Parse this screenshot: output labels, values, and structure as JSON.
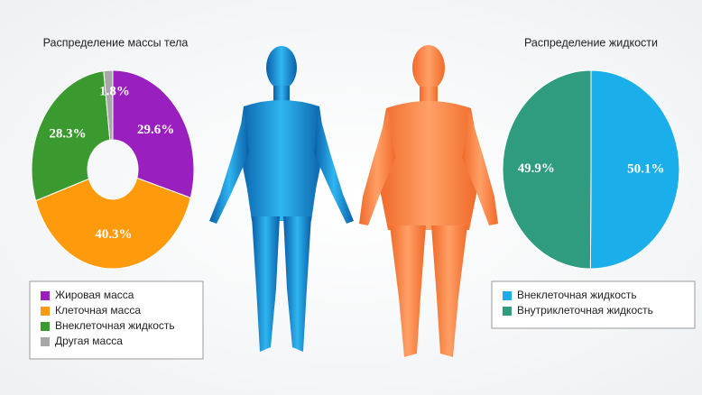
{
  "chart_data": [
    {
      "type": "donut",
      "title": "Распределение массы тела",
      "categories": [
        "Жировая масса",
        "Клеточная масса",
        "Внеклеточная жидкость",
        "Другая масса"
      ],
      "values": [
        29.6,
        40.3,
        28.3,
        1.8
      ],
      "value_labels": [
        "29.6%",
        "40.3%",
        "28.3%",
        "1.8%"
      ],
      "colors": [
        "#9a1fbf",
        "#ff9a0c",
        "#3b9a2f",
        "#a8a8a8"
      ]
    },
    {
      "type": "pie",
      "title": "Распределение жидкости",
      "categories": [
        "Внеклеточная жидкость",
        "Внутриклеточная жидкость"
      ],
      "values": [
        50.1,
        49.9
      ],
      "value_labels": [
        "50.1%",
        "49.9%"
      ],
      "colors": [
        "#1aaeea",
        "#2f9b7f"
      ]
    }
  ]
}
